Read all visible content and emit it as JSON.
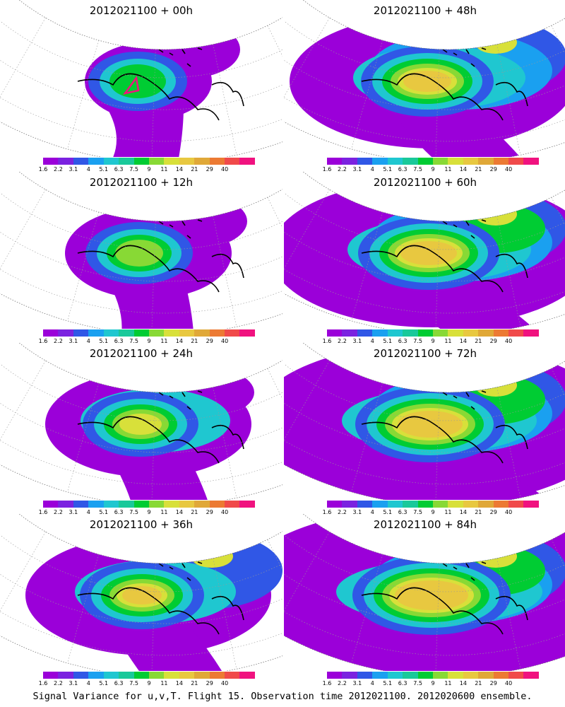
{
  "caption": "Signal Variance for u,v,T. Flight 15. Observation time 2012021100. 2012020600 ensemble.",
  "colorbar": {
    "colors": [
      "#9b00d9",
      "#7b22e0",
      "#3057e6",
      "#1aa0f0",
      "#1fc7d0",
      "#19c99a",
      "#00cc33",
      "#88d935",
      "#d8e03a",
      "#e8c840",
      "#e0a838",
      "#ec7a33",
      "#f04a4a",
      "#f0127f"
    ],
    "tick_labels": [
      "1.6",
      "2.2",
      "3.1",
      "4",
      "5.1",
      "6.3",
      "7.5",
      "9",
      "11",
      "14",
      "21",
      "29",
      "40"
    ]
  },
  "panels": [
    {
      "title": "2012021100 + 00h",
      "column": "left",
      "row": 1,
      "intensity": 0,
      "spread": 0
    },
    {
      "title": "2012021100 + 12h",
      "column": "left",
      "row": 2,
      "intensity": 1,
      "spread": 1
    },
    {
      "title": "2012021100 + 24h",
      "column": "left",
      "row": 3,
      "intensity": 2,
      "spread": 2
    },
    {
      "title": "2012021100 + 36h",
      "column": "left",
      "row": 4,
      "intensity": 3,
      "spread": 3
    },
    {
      "title": "2012021100 + 48h",
      "column": "right",
      "row": 1,
      "intensity": 3,
      "spread": 4
    },
    {
      "title": "2012021100 + 60h",
      "column": "right",
      "row": 2,
      "intensity": 3,
      "spread": 5
    },
    {
      "title": "2012021100 + 72h",
      "column": "right",
      "row": 3,
      "intensity": 3,
      "spread": 6
    },
    {
      "title": "2012021100 + 84h",
      "column": "right",
      "row": 4,
      "intensity": 4,
      "spread": 7
    }
  ]
}
